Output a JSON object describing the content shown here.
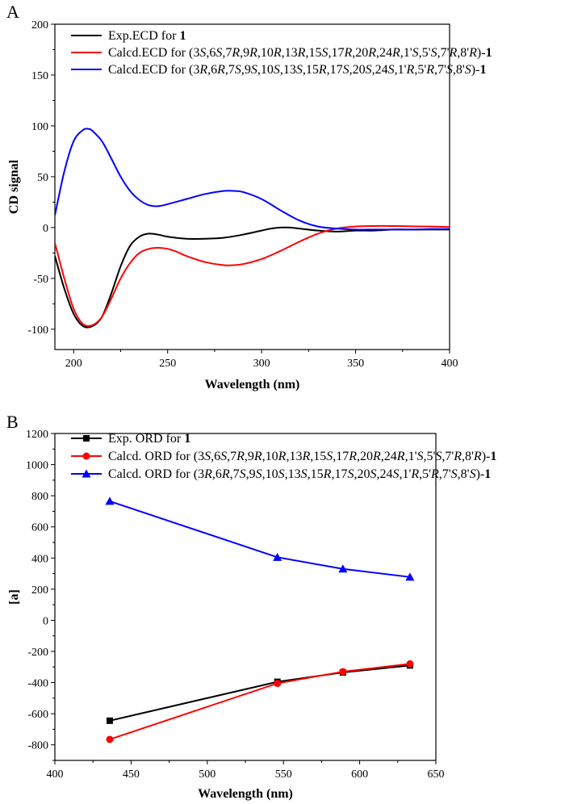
{
  "chart_data": [
    {
      "panel_label": "A",
      "type": "line",
      "xlabel": "Wavelength (nm)",
      "ylabel": "CD signal",
      "xlim": [
        190,
        400
      ],
      "ylim": [
        -120,
        200
      ],
      "xticks": [
        200,
        250,
        300,
        350,
        400
      ],
      "yticks": [
        -100,
        -50,
        0,
        50,
        100,
        150,
        200
      ],
      "grid": false,
      "legend_position": "top-left",
      "series": [
        {
          "name": "Exp.ECD for 1",
          "legend_prefix": "Exp.ECD for ",
          "legend_compound": "1",
          "color": "#000000",
          "x": [
            190,
            195,
            200,
            205,
            210,
            215,
            220,
            225,
            230,
            235,
            240,
            245,
            250,
            260,
            270,
            280,
            290,
            300,
            305,
            310,
            315,
            320,
            330,
            340,
            350,
            360,
            370,
            380,
            390,
            400
          ],
          "y": [
            -28,
            -60,
            -85,
            -97,
            -97,
            -88,
            -65,
            -38,
            -18,
            -9,
            -6,
            -7,
            -9,
            -11,
            -11,
            -10,
            -7,
            -3,
            -1,
            0,
            0,
            -1,
            -3,
            -4,
            -3,
            -3,
            -2,
            -2,
            -2,
            -2
          ]
        },
        {
          "name": "Calcd.ECD for (3S,6S,7R,9R,10R,13R,15S,17R,20R,24R,1'S,5'S,7'R,8'R)-1",
          "legend_prefix": "Calcd.ECD for ",
          "legend_config": [
            [
              "(3",
              false
            ],
            [
              "S",
              true
            ],
            [
              ",6",
              false
            ],
            [
              "S",
              true
            ],
            [
              ",7",
              false
            ],
            [
              "R",
              true
            ],
            [
              ",9",
              false
            ],
            [
              "R",
              true
            ],
            [
              ",10",
              false
            ],
            [
              "R",
              true
            ],
            [
              ",13",
              false
            ],
            [
              "R",
              true
            ],
            [
              ",15",
              false
            ],
            [
              "S",
              true
            ],
            [
              ",17",
              false
            ],
            [
              "R",
              true
            ],
            [
              ",20",
              false
            ],
            [
              "R",
              true
            ],
            [
              ",24",
              false
            ],
            [
              "R",
              true
            ],
            [
              ",1'",
              false
            ],
            [
              "S",
              true
            ],
            [
              ",5'",
              false
            ],
            [
              "S",
              true
            ],
            [
              ",7'",
              false
            ],
            [
              "R",
              true
            ],
            [
              ",8'",
              false
            ],
            [
              "R",
              true
            ],
            [
              ")-",
              false
            ]
          ],
          "legend_compound": "1",
          "color": "#ff0000",
          "x": [
            190,
            195,
            200,
            205,
            210,
            215,
            220,
            225,
            230,
            235,
            240,
            245,
            250,
            255,
            260,
            270,
            280,
            285,
            290,
            300,
            310,
            320,
            330,
            340,
            350,
            360,
            370,
            380,
            390,
            400
          ],
          "y": [
            -15,
            -50,
            -80,
            -95,
            -96,
            -88,
            -70,
            -50,
            -35,
            -25,
            -21,
            -20,
            -21,
            -24,
            -28,
            -34,
            -37,
            -37,
            -36,
            -31,
            -23,
            -14,
            -6,
            -1,
            1,
            1.5,
            1.5,
            1.2,
            1,
            0.5
          ]
        },
        {
          "name": "Calcd.ECD for (3R,6R,7S,9S,10S,13S,15R,17S,20S,24S,1'R,5'R,7'S,8'S)-1",
          "legend_prefix": "Calcd.ECD for ",
          "legend_config": [
            [
              "(3",
              false
            ],
            [
              "R",
              true
            ],
            [
              ",6",
              false
            ],
            [
              "R",
              true
            ],
            [
              ",7",
              false
            ],
            [
              "S",
              true
            ],
            [
              ",9",
              false
            ],
            [
              "S",
              true
            ],
            [
              ",10",
              false
            ],
            [
              "S",
              true
            ],
            [
              ",13",
              false
            ],
            [
              "S",
              true
            ],
            [
              ",15",
              false
            ],
            [
              "R",
              true
            ],
            [
              ",17",
              false
            ],
            [
              "S",
              true
            ],
            [
              ",20",
              false
            ],
            [
              "S",
              true
            ],
            [
              ",24",
              false
            ],
            [
              "S",
              true
            ],
            [
              ",1'",
              false
            ],
            [
              "R",
              true
            ],
            [
              ",5'",
              false
            ],
            [
              "R",
              true
            ],
            [
              ",7'",
              false
            ],
            [
              "S",
              true
            ],
            [
              ",8'",
              false
            ],
            [
              "S",
              true
            ],
            [
              ")-",
              false
            ]
          ],
          "legend_compound": "1",
          "color": "#0000ff",
          "x": [
            190,
            195,
            200,
            205,
            208,
            210,
            215,
            220,
            225,
            230,
            235,
            240,
            245,
            250,
            260,
            270,
            280,
            285,
            290,
            300,
            310,
            320,
            330,
            340,
            350,
            360,
            370,
            380,
            390,
            400
          ],
          "y": [
            12,
            55,
            85,
            96,
            97,
            95,
            85,
            68,
            50,
            36,
            27,
            22,
            21,
            23,
            28,
            33,
            36,
            36,
            35,
            28,
            17,
            7,
            1,
            -1,
            -2,
            -2,
            -2,
            -2,
            -1.5,
            -1.5
          ]
        }
      ]
    },
    {
      "panel_label": "B",
      "type": "line",
      "xlabel": "Wavelength (nm)",
      "ylabel": "[a]",
      "xlim": [
        400,
        650
      ],
      "ylim": [
        -900,
        1200
      ],
      "xticks": [
        400,
        450,
        500,
        550,
        600,
        650
      ],
      "yticks": [
        -800,
        -600,
        -400,
        -200,
        0,
        200,
        400,
        600,
        800,
        1000,
        1200
      ],
      "grid": false,
      "legend_position": "top-left",
      "series": [
        {
          "name": "Exp. ORD for 1",
          "legend_prefix": "Exp. ORD for ",
          "legend_compound": "1",
          "color": "#000000",
          "marker": "square",
          "x": [
            436,
            546,
            589,
            633
          ],
          "y": [
            -645,
            -395,
            -335,
            -290
          ]
        },
        {
          "name": "Calcd. ORD for (3S,6S,7R,9R,10R,13R,15S,17R,20R,24R,1'S,5'S,7'R,8'R)-1",
          "legend_prefix": "Calcd. ORD for ",
          "legend_config": [
            [
              "(3",
              false
            ],
            [
              "S",
              true
            ],
            [
              ",6",
              false
            ],
            [
              "S",
              true
            ],
            [
              ",7",
              false
            ],
            [
              "R",
              true
            ],
            [
              ",9",
              false
            ],
            [
              "R",
              true
            ],
            [
              ",10",
              false
            ],
            [
              "R",
              true
            ],
            [
              ",13",
              false
            ],
            [
              "R",
              true
            ],
            [
              ",15",
              false
            ],
            [
              "S",
              true
            ],
            [
              ",17",
              false
            ],
            [
              "R",
              true
            ],
            [
              ",20",
              false
            ],
            [
              "R",
              true
            ],
            [
              ",24",
              false
            ],
            [
              "R",
              true
            ],
            [
              ",1'",
              false
            ],
            [
              "S",
              true
            ],
            [
              ",5'",
              false
            ],
            [
              "S",
              true
            ],
            [
              ",7'",
              false
            ],
            [
              "R",
              true
            ],
            [
              ",8'",
              false
            ],
            [
              "R",
              true
            ],
            [
              ")-",
              false
            ]
          ],
          "legend_compound": "1",
          "color": "#ff0000",
          "marker": "circle",
          "x": [
            436,
            546,
            589,
            633
          ],
          "y": [
            -765,
            -405,
            -330,
            -280
          ]
        },
        {
          "name": "Calcd. ORD for (3R,6R,7S,9S,10S,13S,15R,17S,20S,24S,1'R,5'R,7'S,8'S)-1",
          "legend_prefix": "Calcd. ORD for ",
          "legend_config": [
            [
              "(3",
              false
            ],
            [
              "R",
              true
            ],
            [
              ",6",
              false
            ],
            [
              "R",
              true
            ],
            [
              ",7",
              false
            ],
            [
              "S",
              true
            ],
            [
              ",9",
              false
            ],
            [
              "S",
              true
            ],
            [
              ",10",
              false
            ],
            [
              "S",
              true
            ],
            [
              ",13",
              false
            ],
            [
              "S",
              true
            ],
            [
              ",15",
              false
            ],
            [
              "R",
              true
            ],
            [
              ",17",
              false
            ],
            [
              "S",
              true
            ],
            [
              ",20",
              false
            ],
            [
              "S",
              true
            ],
            [
              ",24",
              false
            ],
            [
              "S",
              true
            ],
            [
              ",1'",
              false
            ],
            [
              "R",
              true
            ],
            [
              ",5'",
              false
            ],
            [
              "R",
              true
            ],
            [
              ",7'",
              false
            ],
            [
              "S",
              true
            ],
            [
              ",8'",
              false
            ],
            [
              "S",
              true
            ],
            [
              ")-",
              false
            ]
          ],
          "legend_compound": "1",
          "color": "#0000ff",
          "marker": "triangle",
          "x": [
            436,
            546,
            589,
            633
          ],
          "y": [
            765,
            405,
            330,
            278
          ]
        }
      ]
    }
  ]
}
